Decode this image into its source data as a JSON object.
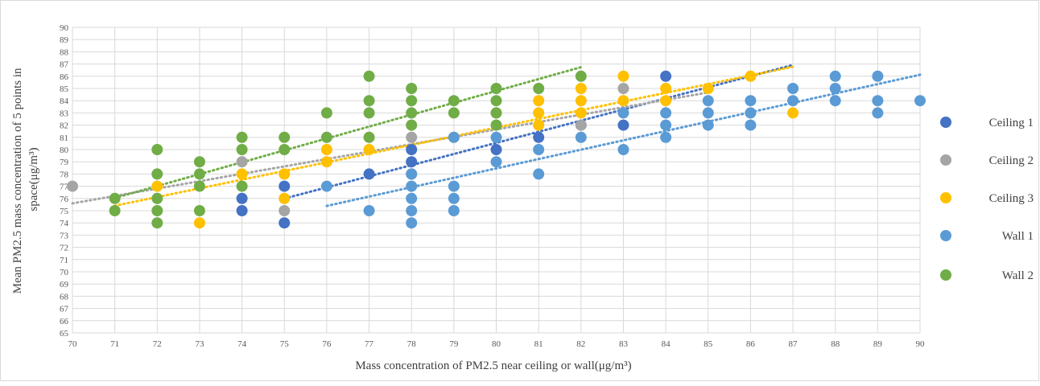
{
  "chart_data": {
    "type": "scatter",
    "xlabel": "Mass concentration of PM2.5 near ceiling or wall(μg/m³)",
    "ylabel_line1": "Mean PM2.5 mass concentration of 5 points in",
    "ylabel_line2": "space(μg/m³)",
    "xlim": [
      70,
      90
    ],
    "ylim": [
      65,
      90
    ],
    "x_ticks": [
      70,
      71,
      72,
      73,
      74,
      75,
      76,
      77,
      78,
      79,
      80,
      81,
      82,
      83,
      84,
      85,
      86,
      87,
      88,
      89,
      90
    ],
    "y_ticks": [
      65,
      66,
      67,
      68,
      69,
      70,
      71,
      72,
      73,
      74,
      75,
      76,
      77,
      78,
      79,
      80,
      81,
      82,
      83,
      84,
      85,
      86,
      87,
      88,
      89,
      90
    ],
    "grid": true,
    "legend_position": "right",
    "trendline": "linear, dotted",
    "series": [
      {
        "name": "Ceiling 1",
        "color": "#4472C4",
        "points": [
          [
            74,
            75
          ],
          [
            74,
            76
          ],
          [
            75,
            74
          ],
          [
            75,
            77
          ],
          [
            77,
            78
          ],
          [
            78,
            78
          ],
          [
            78,
            79
          ],
          [
            78,
            80
          ],
          [
            80,
            80
          ],
          [
            81,
            81
          ],
          [
            82,
            82
          ],
          [
            83,
            82
          ],
          [
            84,
            86
          ]
        ],
        "trend_x": [
          75,
          87
        ]
      },
      {
        "name": "Ceiling 2",
        "color": "#A5A5A5",
        "points": [
          [
            70,
            77
          ],
          [
            74,
            79
          ],
          [
            75,
            75
          ],
          [
            78,
            81
          ],
          [
            82,
            82
          ],
          [
            83,
            85
          ]
        ],
        "trend_x": [
          70,
          85
        ]
      },
      {
        "name": "Ceiling 3",
        "color": "#FFC000",
        "points": [
          [
            72,
            77
          ],
          [
            73,
            74
          ],
          [
            74,
            78
          ],
          [
            75,
            76
          ],
          [
            75,
            78
          ],
          [
            76,
            79
          ],
          [
            76,
            80
          ],
          [
            77,
            80
          ],
          [
            79,
            81
          ],
          [
            80,
            83
          ],
          [
            81,
            82
          ],
          [
            81,
            83
          ],
          [
            81,
            84
          ],
          [
            82,
            83
          ],
          [
            82,
            84
          ],
          [
            82,
            85
          ],
          [
            83,
            84
          ],
          [
            83,
            86
          ],
          [
            84,
            84
          ],
          [
            84,
            85
          ],
          [
            85,
            85
          ],
          [
            86,
            86
          ],
          [
            87,
            83
          ]
        ],
        "trend_x": [
          71,
          87
        ]
      },
      {
        "name": "Wall 1",
        "color": "#5B9BD5",
        "points": [
          [
            76,
            77
          ],
          [
            77,
            75
          ],
          [
            78,
            74
          ],
          [
            78,
            75
          ],
          [
            78,
            76
          ],
          [
            78,
            77
          ],
          [
            78,
            78
          ],
          [
            79,
            75
          ],
          [
            79,
            76
          ],
          [
            79,
            77
          ],
          [
            79,
            81
          ],
          [
            80,
            79
          ],
          [
            80,
            81
          ],
          [
            81,
            78
          ],
          [
            81,
            80
          ],
          [
            82,
            81
          ],
          [
            83,
            80
          ],
          [
            83,
            83
          ],
          [
            84,
            81
          ],
          [
            84,
            82
          ],
          [
            84,
            83
          ],
          [
            85,
            82
          ],
          [
            85,
            83
          ],
          [
            85,
            84
          ],
          [
            86,
            82
          ],
          [
            86,
            83
          ],
          [
            86,
            84
          ],
          [
            87,
            84
          ],
          [
            87,
            85
          ],
          [
            88,
            84
          ],
          [
            88,
            85
          ],
          [
            88,
            86
          ],
          [
            89,
            83
          ],
          [
            89,
            84
          ],
          [
            89,
            86
          ],
          [
            90,
            84
          ]
        ],
        "trend_x": [
          76,
          90
        ]
      },
      {
        "name": "Wall 2",
        "color": "#70AD47",
        "points": [
          [
            71,
            75
          ],
          [
            71,
            76
          ],
          [
            72,
            74
          ],
          [
            72,
            75
          ],
          [
            72,
            76
          ],
          [
            72,
            78
          ],
          [
            72,
            80
          ],
          [
            73,
            75
          ],
          [
            73,
            77
          ],
          [
            73,
            78
          ],
          [
            73,
            79
          ],
          [
            74,
            77
          ],
          [
            74,
            80
          ],
          [
            74,
            81
          ],
          [
            75,
            80
          ],
          [
            75,
            81
          ],
          [
            76,
            81
          ],
          [
            76,
            83
          ],
          [
            77,
            81
          ],
          [
            77,
            83
          ],
          [
            77,
            84
          ],
          [
            77,
            86
          ],
          [
            78,
            82
          ],
          [
            78,
            83
          ],
          [
            78,
            84
          ],
          [
            78,
            85
          ],
          [
            79,
            83
          ],
          [
            79,
            84
          ],
          [
            80,
            82
          ],
          [
            80,
            83
          ],
          [
            80,
            84
          ],
          [
            80,
            85
          ],
          [
            81,
            85
          ],
          [
            82,
            86
          ]
        ],
        "trend_x": [
          71,
          82
        ]
      }
    ]
  }
}
